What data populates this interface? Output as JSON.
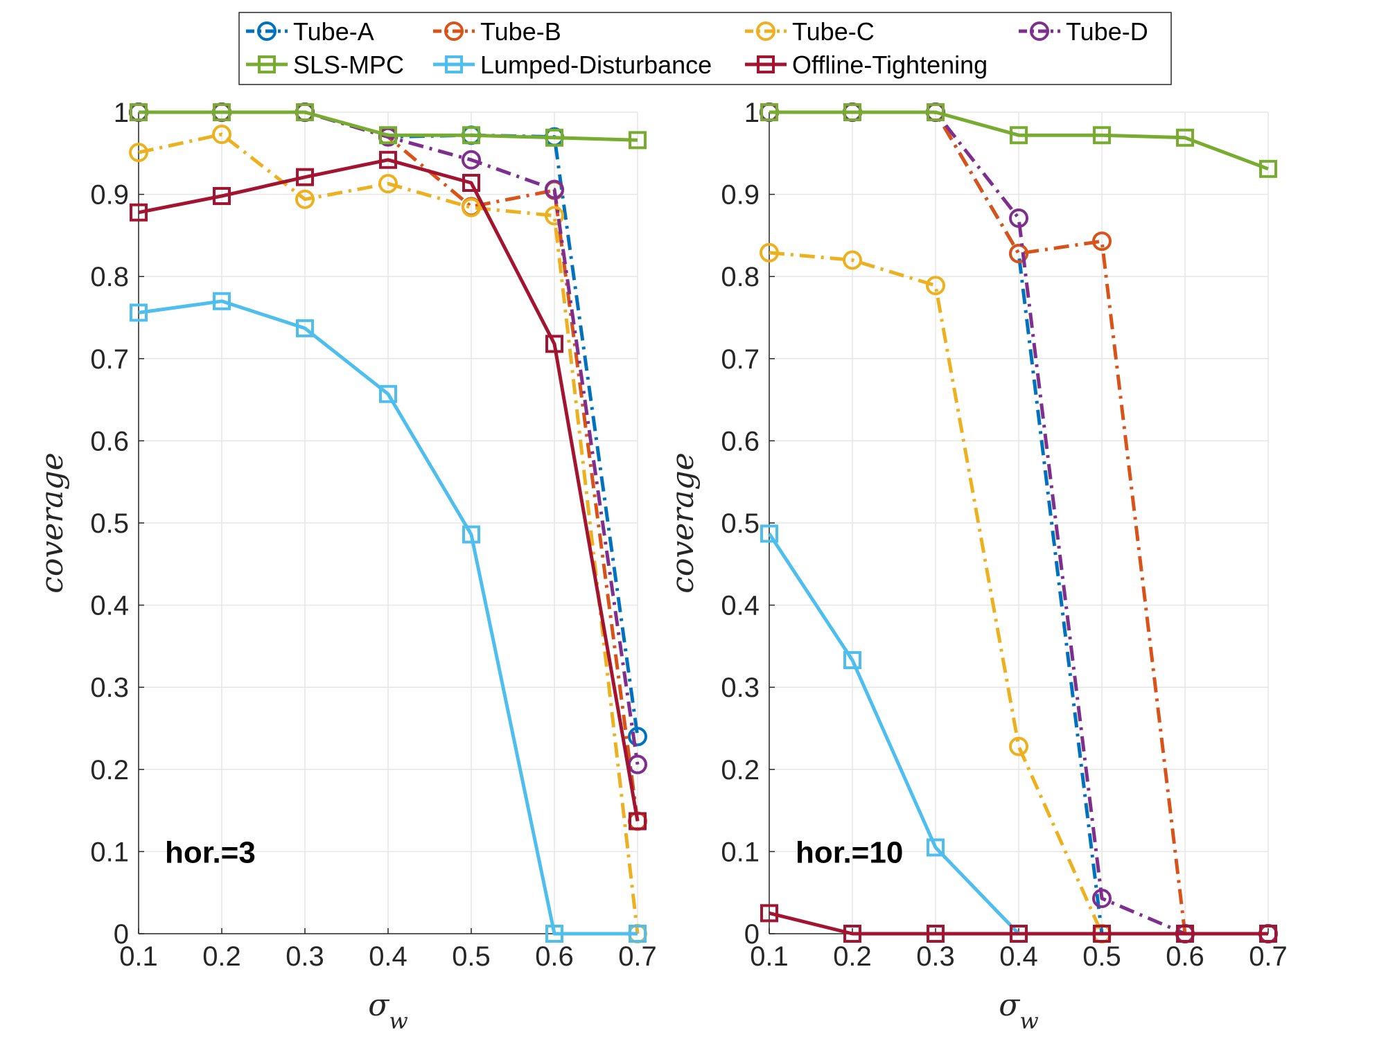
{
  "chart_data": [
    {
      "type": "line",
      "title": "",
      "xlabel": "σ_w",
      "ylabel": "coverage",
      "annotation": "hor.=3",
      "xlim": [
        0.1,
        0.7
      ],
      "ylim": [
        0,
        1
      ],
      "grid": true,
      "x": [
        0.1,
        0.2,
        0.3,
        0.4,
        0.5,
        0.6,
        0.7
      ],
      "xticks": [
        "0.1",
        "0.2",
        "0.3",
        "0.4",
        "0.5",
        "0.6",
        "0.7"
      ],
      "yticks": [
        "0",
        "0.1",
        "0.2",
        "0.3",
        "0.4",
        "0.5",
        "0.6",
        "0.7",
        "0.8",
        "0.9",
        "1"
      ],
      "series": [
        {
          "name": "Tube-A",
          "color": "#0072BD",
          "marker": "circle",
          "style": "dashdot",
          "values": [
            1.0,
            1.0,
            1.0,
            0.97,
            0.972,
            0.97,
            0.24
          ]
        },
        {
          "name": "Tube-B",
          "color": "#D95319",
          "marker": "circle",
          "style": "dashdot",
          "values": [
            1.0,
            1.0,
            1.0,
            0.97,
            0.885,
            0.905,
            0.137
          ]
        },
        {
          "name": "Tube-C",
          "color": "#EDB120",
          "marker": "circle",
          "style": "dashdot",
          "values": [
            0.951,
            0.973,
            0.894,
            0.913,
            0.884,
            0.874,
            0.0
          ]
        },
        {
          "name": "Tube-D",
          "color": "#7E2F8E",
          "marker": "circle",
          "style": "dashdot",
          "values": [
            1.0,
            1.0,
            1.0,
            0.97,
            0.942,
            0.906,
            0.206
          ]
        },
        {
          "name": "SLS-MPC",
          "color": "#77AC30",
          "marker": "square",
          "style": "solid",
          "values": [
            1.0,
            1.0,
            1.0,
            0.972,
            0.972,
            0.969,
            0.966
          ]
        },
        {
          "name": "Lumped-Disturbance",
          "color": "#4DBEEE",
          "marker": "square",
          "style": "solid",
          "values": [
            0.756,
            0.77,
            0.737,
            0.657,
            0.486,
            0.0,
            0.0
          ]
        },
        {
          "name": "Offline-Tightening",
          "color": "#A2142F",
          "marker": "square",
          "style": "solid",
          "values": [
            0.878,
            0.898,
            0.921,
            0.942,
            0.914,
            0.718,
            0.137
          ]
        }
      ]
    },
    {
      "type": "line",
      "title": "",
      "xlabel": "σ_w",
      "ylabel": "coverage",
      "annotation": "hor.=10",
      "xlim": [
        0.1,
        0.7
      ],
      "ylim": [
        0,
        1
      ],
      "grid": true,
      "x": [
        0.1,
        0.2,
        0.3,
        0.4,
        0.5,
        0.6,
        0.7
      ],
      "xticks": [
        "0.1",
        "0.2",
        "0.3",
        "0.4",
        "0.5",
        "0.6",
        "0.7"
      ],
      "yticks": [
        "0",
        "0.1",
        "0.2",
        "0.3",
        "0.4",
        "0.5",
        "0.6",
        "0.7",
        "0.8",
        "0.9",
        "1"
      ],
      "series": [
        {
          "name": "Tube-A",
          "color": "#0072BD",
          "marker": "circle",
          "style": "dashdot",
          "values": [
            1.0,
            1.0,
            1.0,
            0.828,
            0.0,
            0.0,
            0.0
          ]
        },
        {
          "name": "Tube-B",
          "color": "#D95319",
          "marker": "circle",
          "style": "dashdot",
          "values": [
            1.0,
            1.0,
            1.0,
            0.828,
            0.843,
            0.0,
            0.0
          ]
        },
        {
          "name": "Tube-C",
          "color": "#EDB120",
          "marker": "circle",
          "style": "dashdot",
          "values": [
            0.829,
            0.82,
            0.789,
            0.228,
            0.0,
            0.0,
            0.0
          ]
        },
        {
          "name": "Tube-D",
          "color": "#7E2F8E",
          "marker": "circle",
          "style": "dashdot",
          "values": [
            1.0,
            1.0,
            1.0,
            0.871,
            0.043,
            0.0,
            0.0
          ]
        },
        {
          "name": "SLS-MPC",
          "color": "#77AC30",
          "marker": "square",
          "style": "solid",
          "values": [
            1.0,
            1.0,
            1.0,
            0.972,
            0.972,
            0.969,
            0.931
          ]
        },
        {
          "name": "Lumped-Disturbance",
          "color": "#4DBEEE",
          "marker": "square",
          "style": "solid",
          "values": [
            0.487,
            0.333,
            0.105,
            0.0,
            0.0,
            0.0,
            0.0
          ]
        },
        {
          "name": "Offline-Tightening",
          "color": "#A2142F",
          "marker": "square",
          "style": "solid",
          "values": [
            0.025,
            0.0,
            0.0,
            0.0,
            0.0,
            0.0,
            0.0
          ]
        }
      ]
    }
  ],
  "legend": {
    "placement": "top-center",
    "entries": [
      "Tube-A",
      "Tube-B",
      "Tube-C",
      "Tube-D",
      "SLS-MPC",
      "Lumped-Disturbance",
      "Offline-Tightening"
    ]
  }
}
